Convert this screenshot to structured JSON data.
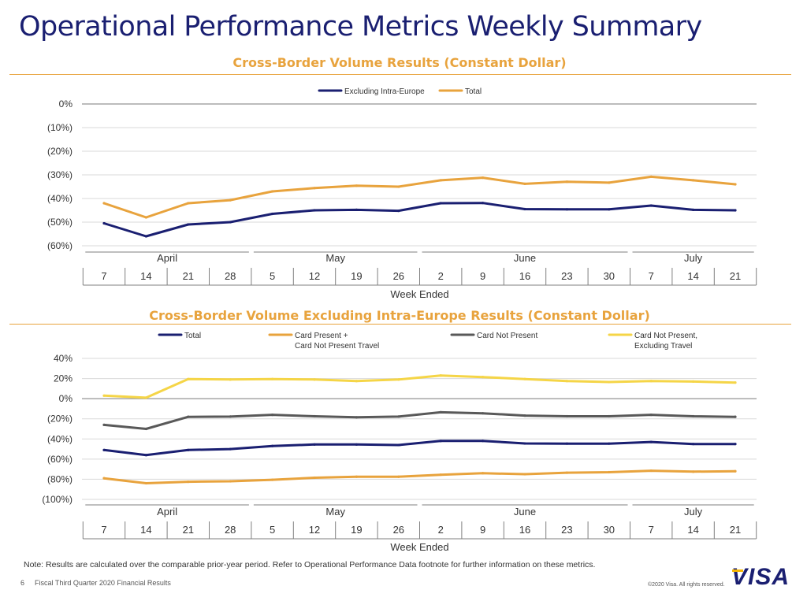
{
  "page": {
    "title": "Operational Performance Metrics Weekly Summary",
    "footnote": "Note: Results are calculated over the comparable prior-year period. Refer to Operational Performance Data footnote for further information on these metrics.",
    "page_number": "6",
    "footer_label": "Fiscal Third Quarter 2020 Financial Results",
    "copyright": "©2020 Visa. All rights reserved.",
    "logo_text": "VISA"
  },
  "colors": {
    "navy": "#1a1f71",
    "gold": "#e8a33d",
    "gray": "#595959",
    "yellow": "#f5d547",
    "title": "#1a1f71",
    "rule": "#e8a33d"
  },
  "chart_data": [
    {
      "type": "line",
      "title": "Cross-Border Volume Results (Constant Dollar)",
      "xlabel": "Week Ended",
      "ylabel": "",
      "ylim": [
        -60,
        0
      ],
      "yticks": [
        0,
        -10,
        -20,
        -30,
        -40,
        -50,
        -60
      ],
      "ytick_labels": [
        "0%",
        "(10%)",
        "(20%)",
        "(30%)",
        "(40%)",
        "(50%)",
        "(60%)"
      ],
      "categories": [
        "7",
        "14",
        "21",
        "28",
        "5",
        "12",
        "19",
        "26",
        "2",
        "9",
        "16",
        "23",
        "30",
        "7",
        "14",
        "21"
      ],
      "months": [
        {
          "label": "April",
          "start": 0,
          "end": 3
        },
        {
          "label": "May",
          "start": 4,
          "end": 7
        },
        {
          "label": "June",
          "start": 8,
          "end": 12
        },
        {
          "label": "July",
          "start": 13,
          "end": 15
        }
      ],
      "grid": true,
      "legend_position": "top-center",
      "series": [
        {
          "name": "Excluding Intra-Europe",
          "color": "#1a1f71",
          "values": [
            -50.5,
            -56,
            -51,
            -50,
            -46.5,
            -45,
            -44.8,
            -45.2,
            -42,
            -41.9,
            -44.5,
            -44.6,
            -44.6,
            -43,
            -44.8,
            -45
          ]
        },
        {
          "name": "Total",
          "color": "#e8a33d",
          "values": [
            -42,
            -48,
            -42,
            -40.7,
            -37,
            -35.6,
            -34.6,
            -35,
            -32.3,
            -31.2,
            -33.8,
            -32.9,
            -33.3,
            -30.8,
            -32.3,
            -34
          ]
        }
      ]
    },
    {
      "type": "line",
      "title": "Cross-Border Volume Excluding Intra-Europe Results (Constant Dollar)",
      "xlabel": "Week Ended",
      "ylabel": "",
      "ylim": [
        -100,
        40
      ],
      "yticks": [
        40,
        20,
        0,
        -20,
        -40,
        -60,
        -80,
        -100
      ],
      "ytick_labels": [
        "40%",
        "20%",
        "0%",
        "(20%)",
        "(40%)",
        "(60%)",
        "(80%)",
        "(100%)"
      ],
      "categories": [
        "7",
        "14",
        "21",
        "28",
        "5",
        "12",
        "19",
        "26",
        "2",
        "9",
        "16",
        "23",
        "30",
        "7",
        "14",
        "21"
      ],
      "months": [
        {
          "label": "April",
          "start": 0,
          "end": 3
        },
        {
          "label": "May",
          "start": 4,
          "end": 7
        },
        {
          "label": "June",
          "start": 8,
          "end": 12
        },
        {
          "label": "July",
          "start": 13,
          "end": 15
        }
      ],
      "grid": true,
      "legend_position": "top",
      "series": [
        {
          "name": "Total",
          "color": "#1a1f71",
          "values": [
            -51,
            -56,
            -51,
            -50,
            -47,
            -45.5,
            -45.5,
            -46,
            -42,
            -41.9,
            -44.5,
            -44.6,
            -44.6,
            -43,
            -45,
            -45
          ]
        },
        {
          "name": "Card Present + Card Not Present Travel",
          "legend_lines": [
            "Card Present +",
            "Card Not Present Travel"
          ],
          "color": "#e8a33d",
          "values": [
            -79,
            -84,
            -82.5,
            -82,
            -80.5,
            -78.5,
            -77.5,
            -77.5,
            -75.5,
            -74,
            -75,
            -73.5,
            -73,
            -71.5,
            -72.5,
            -72
          ]
        },
        {
          "name": "Card Not Present",
          "color": "#595959",
          "values": [
            -26,
            -30,
            -18,
            -17.8,
            -16,
            -17.5,
            -18.5,
            -17.8,
            -13.5,
            -14.5,
            -16.8,
            -17.5,
            -17.5,
            -16,
            -17.5,
            -18
          ]
        },
        {
          "name": "Card Not Present, Excluding Travel",
          "legend_lines": [
            "Card Not Present,",
            "Excluding Travel"
          ],
          "color": "#f5d547",
          "values": [
            3,
            1,
            19.5,
            19,
            19.5,
            19,
            17.5,
            19,
            23,
            21.5,
            19.5,
            17.5,
            16.5,
            17.5,
            17,
            16
          ]
        }
      ]
    }
  ]
}
